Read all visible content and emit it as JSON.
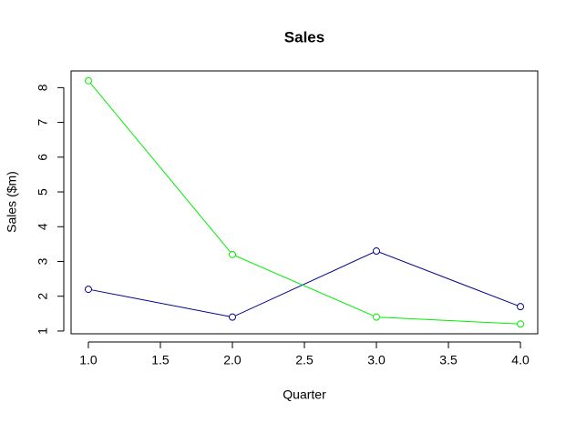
{
  "chart_data": {
    "type": "line",
    "title": "Sales",
    "x_label": "Quarter",
    "y_label": "Sales ($m)",
    "x": [
      1,
      2,
      3,
      4
    ],
    "series": [
      {
        "color": "#00008b",
        "values": [
          2.2,
          1.4,
          3.3,
          1.7
        ]
      },
      {
        "color": "#00ee00",
        "values": [
          8.2,
          3.2,
          1.4,
          1.2
        ]
      }
    ],
    "xlim": [
      0.88,
      4.12
    ],
    "xticks": [
      {
        "value": 1,
        "label": "1.0"
      },
      {
        "value": 1.5,
        "label": "1.5"
      },
      {
        "value": 2,
        "label": "2.0"
      },
      {
        "value": 2.5,
        "label": "2.5"
      },
      {
        "value": 3,
        "label": "3.0"
      },
      {
        "value": 3.5,
        "label": "3.5"
      },
      {
        "value": 4,
        "label": "4.0"
      }
    ],
    "ylim": [
      0.92,
      8.48
    ],
    "yticks": [
      1,
      2,
      3,
      4,
      5,
      6,
      7,
      8
    ],
    "grid": false
  }
}
